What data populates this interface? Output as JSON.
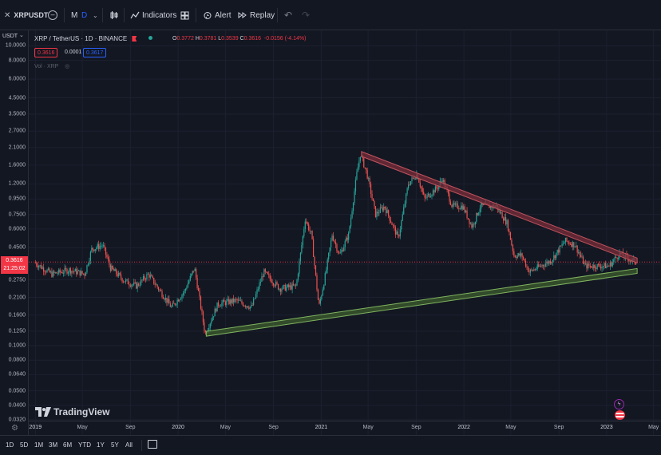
{
  "toolbar": {
    "symbol": "XRPUSDT",
    "interval_month": "M",
    "interval_day": "D",
    "indicators_label": "Indicators",
    "alert_label": "Alert",
    "replay_label": "Replay"
  },
  "legend": {
    "title": "XRP / TetherUS · 1D · BINANCE",
    "open_label": "O",
    "open": "0.3772",
    "high_label": "H",
    "high": "0.3781",
    "low_label": "L",
    "low": "0.3539",
    "close_label": "C",
    "close": "0.3616",
    "change": "-0.0156 (-4.14%)",
    "sell_price": "0.3616",
    "spread": "0.0001",
    "buy_price": "0.3617",
    "volume_label": "Vol · XRP"
  },
  "axis": {
    "currency": "USDT",
    "price_label": "0.3616",
    "countdown": "21:25:02"
  },
  "footer": {
    "logo_text": "TradingView",
    "timeframes": [
      "1D",
      "5D",
      "1M",
      "3M",
      "6M",
      "YTD",
      "1Y",
      "5Y",
      "All"
    ]
  },
  "colors": {
    "background": "#131722",
    "up": "#26a69a",
    "down": "#ef5350",
    "resistance": "#7a2e39",
    "support": "#3e5e2e",
    "accent": "#2962ff"
  },
  "chart_data": {
    "type": "candlestick",
    "title": "XRP / TetherUS · 1D · BINANCE",
    "scale": "log",
    "y_ticks": [
      "10.0000",
      "8.0000",
      "6.0000",
      "4.5000",
      "3.5000",
      "2.7000",
      "2.1000",
      "1.6000",
      "1.2000",
      "0.9500",
      "0.7500",
      "0.6000",
      "0.4500",
      "0.3500",
      "0.2750",
      "0.2100",
      "0.1600",
      "0.1250",
      "0.1000",
      "0.0800",
      "0.0640",
      "0.0500",
      "0.0400",
      "0.0320"
    ],
    "x_ticks": [
      "2019",
      "May",
      "Sep",
      "2020",
      "May",
      "Sep",
      "2021",
      "May",
      "Sep",
      "2022",
      "May",
      "Sep",
      "2023",
      "May"
    ],
    "ylim": [
      0.029,
      11.5
    ],
    "xlim": [
      "2018-12-15",
      "2023-05-20"
    ],
    "current_price": 0.3616,
    "price_path": [
      [
        "2019-01-01",
        0.36
      ],
      [
        "2019-02-15",
        0.3
      ],
      [
        "2019-04-01",
        0.32
      ],
      [
        "2019-05-10",
        0.3
      ],
      [
        "2019-05-28",
        0.44
      ],
      [
        "2019-06-25",
        0.47
      ],
      [
        "2019-07-15",
        0.33
      ],
      [
        "2019-08-20",
        0.27
      ],
      [
        "2019-09-20",
        0.25
      ],
      [
        "2019-10-20",
        0.3
      ],
      [
        "2019-11-25",
        0.22
      ],
      [
        "2019-12-18",
        0.18
      ],
      [
        "2020-01-20",
        0.23
      ],
      [
        "2020-02-15",
        0.33
      ],
      [
        "2020-03-13",
        0.12
      ],
      [
        "2020-04-15",
        0.19
      ],
      [
        "2020-06-01",
        0.2
      ],
      [
        "2020-07-10",
        0.18
      ],
      [
        "2020-08-10",
        0.31
      ],
      [
        "2020-09-20",
        0.24
      ],
      [
        "2020-11-01",
        0.25
      ],
      [
        "2020-11-24",
        0.7
      ],
      [
        "2020-12-10",
        0.55
      ],
      [
        "2020-12-29",
        0.18
      ],
      [
        "2021-01-15",
        0.3
      ],
      [
        "2021-02-01",
        0.55
      ],
      [
        "2021-02-20",
        0.4
      ],
      [
        "2021-03-15",
        0.55
      ],
      [
        "2021-04-05",
        1.4
      ],
      [
        "2021-04-14",
        1.9
      ],
      [
        "2021-05-01",
        1.4
      ],
      [
        "2021-05-23",
        0.75
      ],
      [
        "2021-06-15",
        0.85
      ],
      [
        "2021-07-20",
        0.52
      ],
      [
        "2021-08-15",
        1.2
      ],
      [
        "2021-09-06",
        1.4
      ],
      [
        "2021-09-25",
        0.95
      ],
      [
        "2021-10-30",
        1.15
      ],
      [
        "2021-11-10",
        1.3
      ],
      [
        "2021-12-05",
        0.85
      ],
      [
        "2022-01-01",
        0.85
      ],
      [
        "2022-01-25",
        0.62
      ],
      [
        "2022-02-15",
        0.85
      ],
      [
        "2022-03-28",
        0.85
      ],
      [
        "2022-04-25",
        0.65
      ],
      [
        "2022-05-12",
        0.4
      ],
      [
        "2022-06-01",
        0.4
      ],
      [
        "2022-06-20",
        0.31
      ],
      [
        "2022-08-15",
        0.37
      ],
      [
        "2022-09-20",
        0.5
      ],
      [
        "2022-10-15",
        0.47
      ],
      [
        "2022-11-10",
        0.34
      ],
      [
        "2022-12-20",
        0.34
      ],
      [
        "2023-01-10",
        0.34
      ],
      [
        "2023-02-05",
        0.41
      ],
      [
        "2023-03-10",
        0.37
      ],
      [
        "2023-03-18",
        0.3616
      ]
    ],
    "trendlines": [
      {
        "name": "resistance",
        "from": [
          "2021-04-14",
          1.9
        ],
        "to": [
          "2023-03-20",
          0.37
        ]
      },
      {
        "name": "support",
        "from": [
          "2020-03-13",
          0.12
        ],
        "to": [
          "2023-03-20",
          0.315
        ]
      }
    ]
  }
}
